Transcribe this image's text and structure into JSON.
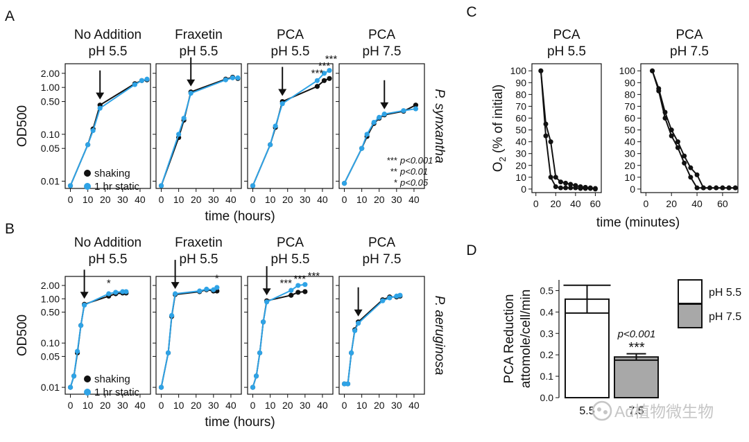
{
  "colors": {
    "shaking": "#111111",
    "static": "#2fa3e6",
    "bar_ph55": "#ffffff",
    "bar_ph75": "#a8a8a8",
    "axis": "#111111",
    "watermark": "#c6c6c6"
  },
  "watermark": {
    "text": "Ad植物微生物"
  },
  "chart_data": [
    {
      "panel": "A",
      "type": "line",
      "yscale": "log",
      "panel_label": "A",
      "ylabel": "OD500",
      "xlabel": "time (hours)",
      "species": "P. synxantha",
      "xticks": [
        0,
        10,
        20,
        30,
        40
      ],
      "xlim": [
        -3,
        46
      ],
      "yticks": [
        0.01,
        0.05,
        0.1,
        0.5,
        1.0,
        2.0
      ],
      "ytick_labels": [
        "0.01",
        "0.05",
        "0.10",
        "0.50",
        "1.00",
        "2.00"
      ],
      "ylim": [
        0.007,
        3.2
      ],
      "legend": {
        "shaking": "shaking",
        "static": "1 hr static"
      },
      "pvalue_legend": [
        {
          "stars": "***",
          "text": "p<0.001"
        },
        {
          "stars": "**",
          "text": "p<0.01"
        },
        {
          "stars": "*",
          "text": "p<0.05"
        }
      ],
      "subplots": [
        {
          "title1": "No Addition",
          "title2": "pH 5.5",
          "arrow_x": 17,
          "series": [
            {
              "name": "shaking",
              "x": [
                0,
                10,
                13,
                17,
                37,
                41,
                44
              ],
              "y": [
                0.008,
                0.06,
                0.13,
                0.42,
                1.2,
                1.4,
                1.45
              ]
            },
            {
              "name": "1 hr static",
              "x": [
                0,
                10,
                13,
                17,
                37,
                41,
                44
              ],
              "y": [
                0.008,
                0.06,
                0.12,
                0.36,
                1.15,
                1.4,
                1.5
              ]
            }
          ],
          "stars": []
        },
        {
          "title1": "Fraxetin",
          "title2": "pH 5.5",
          "arrow_x": 17,
          "series": [
            {
              "name": "shaking",
              "x": [
                0,
                10,
                13,
                17,
                37,
                41,
                44
              ],
              "y": [
                0.008,
                0.085,
                0.2,
                0.8,
                1.5,
                1.65,
                1.55
              ]
            },
            {
              "name": "1 hr static",
              "x": [
                0,
                10,
                13,
                17,
                37,
                41,
                44
              ],
              "y": [
                0.008,
                0.1,
                0.22,
                0.75,
                1.45,
                1.6,
                1.6
              ]
            }
          ],
          "stars": []
        },
        {
          "title1": "PCA",
          "title2": "pH 5.5",
          "arrow_x": 17,
          "series": [
            {
              "name": "shaking",
              "x": [
                0,
                10,
                13,
                17,
                37,
                41,
                44
              ],
              "y": [
                0.008,
                0.06,
                0.14,
                0.5,
                1.05,
                1.4,
                1.55
              ]
            },
            {
              "name": "1 hr static",
              "x": [
                0,
                10,
                13,
                17,
                37,
                41,
                44
              ],
              "y": [
                0.008,
                0.06,
                0.15,
                0.45,
                1.4,
                2.0,
                2.3
              ]
            }
          ],
          "stars": [
            {
              "x": 37,
              "y": 1.95,
              "text": "***"
            },
            {
              "x": 41,
              "y": 2.8,
              "text": "***"
            },
            {
              "x": 45,
              "y": 3.9,
              "text": "***"
            }
          ]
        },
        {
          "title1": "PCA",
          "title2": "pH 7.5",
          "arrow_x": 23,
          "series": [
            {
              "name": "shaking",
              "x": [
                0,
                10,
                13,
                17,
                20,
                23,
                34,
                41
              ],
              "y": [
                0.009,
                0.05,
                0.09,
                0.17,
                0.22,
                0.26,
                0.31,
                0.42
              ]
            },
            {
              "name": "1 hr static",
              "x": [
                0,
                10,
                13,
                17,
                20,
                23,
                34,
                41
              ],
              "y": [
                0.009,
                0.05,
                0.1,
                0.18,
                0.23,
                0.27,
                0.32,
                0.35
              ]
            }
          ],
          "stars": []
        }
      ]
    },
    {
      "panel": "B",
      "type": "line",
      "yscale": "log",
      "panel_label": "B",
      "ylabel": "OD500",
      "xlabel": "time (hours)",
      "species": "P. aeruginosa",
      "xticks": [
        0,
        10,
        20,
        30,
        40
      ],
      "xlim": [
        -3,
        46
      ],
      "yticks": [
        0.01,
        0.05,
        0.1,
        0.5,
        1.0,
        2.0
      ],
      "ytick_labels": [
        "0.01",
        "0.05",
        "0.10",
        "0.50",
        "1.00",
        "2.00"
      ],
      "ylim": [
        0.007,
        3.2
      ],
      "legend": {
        "shaking": "shaking",
        "static": "1 hr static"
      },
      "subplots": [
        {
          "title1": "No Addition",
          "title2": "pH 5.5",
          "arrow_x": 8,
          "series": [
            {
              "name": "shaking",
              "x": [
                0,
                2,
                4,
                6,
                8,
                22,
                26,
                30,
                32
              ],
              "y": [
                0.01,
                0.018,
                0.06,
                0.25,
                0.75,
                1.15,
                1.3,
                1.35,
                1.35
              ]
            },
            {
              "name": "1 hr static",
              "x": [
                0,
                2,
                4,
                6,
                8,
                22,
                26,
                30,
                32
              ],
              "y": [
                0.01,
                0.018,
                0.065,
                0.25,
                0.72,
                1.3,
                1.4,
                1.45,
                1.45
              ]
            }
          ],
          "stars": [
            {
              "x": 22,
              "y": 2.2,
              "text": "*"
            }
          ]
        },
        {
          "title1": "Fraxetin",
          "title2": "pH 5.5",
          "arrow_x": 8,
          "series": [
            {
              "name": "shaking",
              "x": [
                0,
                4,
                6,
                8,
                22,
                26,
                30,
                32
              ],
              "y": [
                0.01,
                0.06,
                0.4,
                1.25,
                1.45,
                1.6,
                1.5,
                1.5
              ]
            },
            {
              "name": "1 hr static",
              "x": [
                0,
                4,
                6,
                8,
                22,
                26,
                30,
                32
              ],
              "y": [
                0.01,
                0.06,
                0.42,
                1.3,
                1.5,
                1.65,
                1.6,
                1.8
              ]
            }
          ],
          "stars": [
            {
              "x": 32,
              "y": 2.8,
              "text": "*"
            }
          ]
        },
        {
          "title1": "PCA",
          "title2": "pH 5.5",
          "arrow_x": 8,
          "series": [
            {
              "name": "shaking",
              "x": [
                0,
                2,
                4,
                6,
                8,
                22,
                26,
                30
              ],
              "y": [
                0.01,
                0.018,
                0.06,
                0.3,
                0.9,
                1.2,
                1.4,
                1.45
              ]
            },
            {
              "name": "1 hr static",
              "x": [
                0,
                2,
                4,
                6,
                8,
                22,
                26,
                30
              ],
              "y": [
                0.01,
                0.018,
                0.06,
                0.3,
                0.85,
                1.55,
                2.0,
                2.1
              ]
            }
          ],
          "stars": [
            {
              "x": 19,
              "y": 2.2,
              "text": "***"
            },
            {
              "x": 27,
              "y": 2.7,
              "text": "***"
            },
            {
              "x": 35,
              "y": 3.2,
              "text": "***"
            }
          ]
        },
        {
          "title1": "PCA",
          "title2": "pH 7.5",
          "arrow_x": 8,
          "series": [
            {
              "name": "shaking",
              "x": [
                0,
                2,
                4,
                6,
                8,
                22,
                26,
                30,
                32
              ],
              "y": [
                0.012,
                0.012,
                0.06,
                0.2,
                0.3,
                0.95,
                1.1,
                1.1,
                1.15
              ]
            },
            {
              "name": "1 hr static",
              "x": [
                0,
                2,
                4,
                6,
                8,
                22,
                26,
                30,
                32
              ],
              "y": [
                0.012,
                0.012,
                0.06,
                0.19,
                0.28,
                0.9,
                1.05,
                1.15,
                1.2
              ]
            }
          ],
          "stars": []
        }
      ]
    },
    {
      "panel": "C",
      "type": "line",
      "yscale": "linear",
      "panel_label": "C",
      "ylabel_main": "O",
      "ylabel_sub": "2",
      "ylabel_rest": " (% of initial)",
      "xlabel": "time (minutes)",
      "yticks": [
        0,
        10,
        20,
        30,
        40,
        50,
        60,
        70,
        80,
        90,
        100
      ],
      "ylim": [
        -3,
        106
      ],
      "subplots": [
        {
          "title1": "PCA",
          "title2": "pH 5.5",
          "xticks": [
            0,
            20,
            40,
            60
          ],
          "xlim": [
            -4,
            66
          ],
          "series": [
            {
              "name": "rep1",
              "x": [
                5,
                10,
                15,
                20,
                25,
                30,
                35,
                40,
                45,
                50,
                55,
                60
              ],
              "y": [
                100,
                55,
                40,
                10,
                6,
                5,
                4,
                3,
                2,
                1.5,
                1,
                0.5
              ]
            },
            {
              "name": "rep2",
              "x": [
                5,
                10,
                15,
                20,
                25,
                30,
                35,
                40,
                45,
                50,
                55,
                60
              ],
              "y": [
                100,
                45,
                10,
                2,
                1,
                1,
                1,
                1,
                0.5,
                0.5,
                0.5,
                0
              ]
            }
          ]
        },
        {
          "title1": "PCA",
          "title2": "pH 7.5",
          "xticks": [
            0,
            20,
            40,
            60
          ],
          "xlim": [
            -4,
            72
          ],
          "series": [
            {
              "name": "rep1",
              "x": [
                5,
                10,
                15,
                20,
                25,
                30,
                35,
                40,
                45,
                50,
                55,
                60,
                65,
                70
              ],
              "y": [
                100,
                85,
                65,
                50,
                40,
                28,
                18,
                12,
                1,
                1,
                1,
                1,
                1,
                1
              ]
            },
            {
              "name": "rep2",
              "x": [
                5,
                10,
                15,
                20,
                25,
                30,
                35,
                40,
                45,
                50,
                55,
                60,
                65,
                70
              ],
              "y": [
                100,
                83,
                60,
                45,
                35,
                22,
                10,
                1,
                1,
                1,
                1,
                1,
                1,
                1
              ]
            }
          ]
        }
      ]
    },
    {
      "panel": "D",
      "type": "bar",
      "panel_label": "D",
      "ylabel1": "PCA Reduction",
      "ylabel2": "attomole/cell/min",
      "categories": [
        "5.5",
        "7.5"
      ],
      "values": [
        0.46,
        0.19
      ],
      "error_upper": [
        0.525,
        0.205
      ],
      "box_lower": [
        0.395,
        0.175
      ],
      "ylim": [
        0,
        0.55
      ],
      "yticks": [
        0.0,
        0.1,
        0.2,
        0.3,
        0.4,
        0.5
      ],
      "ytick_labels": [
        "0.0",
        "0.1",
        "0.2",
        "0.3",
        "0.4",
        "0.5"
      ],
      "annotation_p": "p<0.001",
      "annotation_stars": "***",
      "legend": [
        {
          "label": "pH 5.5"
        },
        {
          "label": "pH 7.5"
        }
      ]
    }
  ]
}
